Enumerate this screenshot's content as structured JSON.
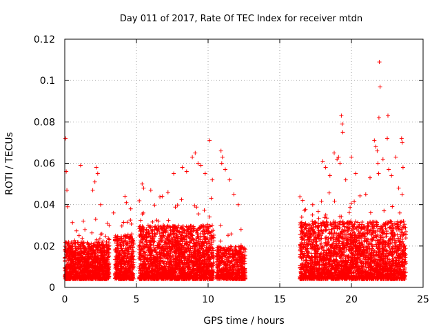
{
  "chart_data": {
    "type": "scatter",
    "title": "Day 011 of 2017, Rate Of TEC Index for receiver mtdn",
    "xlabel": "GPS time / hours",
    "ylabel": "ROTI / TECUs",
    "xlim": [
      0,
      25
    ],
    "ylim": [
      0,
      0.12
    ],
    "x_ticks": [
      "0",
      "5",
      "10",
      "15",
      "20",
      "25"
    ],
    "y_ticks": [
      "0",
      "0.02",
      "0.04",
      "0.06",
      "0.08",
      "0.1",
      "0.12"
    ],
    "x_tick_values": [
      0,
      5,
      10,
      15,
      20,
      25
    ],
    "y_tick_values": [
      0,
      0.02,
      0.04,
      0.06,
      0.08,
      0.1,
      0.12
    ],
    "grid": true,
    "marker": "plus",
    "colors": {
      "points": "#ff0000"
    },
    "clusters": [
      {
        "x_start": 0.0,
        "x_end": 3.1,
        "typical_y_max": 0.022,
        "sample_count": 1200
      },
      {
        "x_start": 3.5,
        "x_end": 4.8,
        "typical_y_max": 0.025,
        "sample_count": 500
      },
      {
        "x_start": 5.2,
        "x_end": 10.4,
        "typical_y_max": 0.03,
        "sample_count": 2000
      },
      {
        "x_start": 10.6,
        "x_end": 12.6,
        "typical_y_max": 0.02,
        "sample_count": 600
      },
      {
        "x_start": 16.4,
        "x_end": 23.8,
        "typical_y_max": 0.032,
        "sample_count": 2600
      }
    ],
    "outliers": [
      [
        0.05,
        0.072
      ],
      [
        0.1,
        0.056
      ],
      [
        0.15,
        0.047
      ],
      [
        0.2,
        0.039
      ],
      [
        1.1,
        0.059
      ],
      [
        1.3,
        0.032
      ],
      [
        2.2,
        0.058
      ],
      [
        2.3,
        0.055
      ],
      [
        2.1,
        0.051
      ],
      [
        1.95,
        0.047
      ],
      [
        2.5,
        0.04
      ],
      [
        3.4,
        0.036
      ],
      [
        4.2,
        0.044
      ],
      [
        4.3,
        0.041
      ],
      [
        4.6,
        0.038
      ],
      [
        5.4,
        0.05
      ],
      [
        5.5,
        0.048
      ],
      [
        6.0,
        0.047
      ],
      [
        6.8,
        0.044
      ],
      [
        7.2,
        0.046
      ],
      [
        7.6,
        0.055
      ],
      [
        8.2,
        0.058
      ],
      [
        8.5,
        0.056
      ],
      [
        8.9,
        0.063
      ],
      [
        9.1,
        0.065
      ],
      [
        9.3,
        0.06
      ],
      [
        9.5,
        0.059
      ],
      [
        9.8,
        0.055
      ],
      [
        10.1,
        0.071
      ],
      [
        10.3,
        0.052
      ],
      [
        10.9,
        0.066
      ],
      [
        11.0,
        0.063
      ],
      [
        10.95,
        0.06
      ],
      [
        11.2,
        0.057
      ],
      [
        11.5,
        0.052
      ],
      [
        11.8,
        0.045
      ],
      [
        12.1,
        0.04
      ],
      [
        12.3,
        0.028
      ],
      [
        16.6,
        0.042
      ],
      [
        17.3,
        0.04
      ],
      [
        18.0,
        0.061
      ],
      [
        18.2,
        0.058
      ],
      [
        18.5,
        0.054
      ],
      [
        18.8,
        0.065
      ],
      [
        19.0,
        0.062
      ],
      [
        19.2,
        0.06
      ],
      [
        19.3,
        0.083
      ],
      [
        19.35,
        0.079
      ],
      [
        19.4,
        0.075
      ],
      [
        19.1,
        0.063
      ],
      [
        19.6,
        0.052
      ],
      [
        20.0,
        0.063
      ],
      [
        20.3,
        0.055
      ],
      [
        21.0,
        0.045
      ],
      [
        21.3,
        0.053
      ],
      [
        21.6,
        0.071
      ],
      [
        21.7,
        0.068
      ],
      [
        21.8,
        0.066
      ],
      [
        21.85,
        0.06
      ],
      [
        21.9,
        0.055
      ],
      [
        21.95,
        0.109
      ],
      [
        22.0,
        0.097
      ],
      [
        21.92,
        0.082
      ],
      [
        22.2,
        0.062
      ],
      [
        22.5,
        0.072
      ],
      [
        22.55,
        0.083
      ],
      [
        22.6,
        0.057
      ],
      [
        22.8,
        0.054
      ],
      [
        23.1,
        0.063
      ],
      [
        23.3,
        0.048
      ],
      [
        23.5,
        0.072
      ],
      [
        23.55,
        0.07
      ],
      [
        23.6,
        0.058
      ]
    ]
  }
}
